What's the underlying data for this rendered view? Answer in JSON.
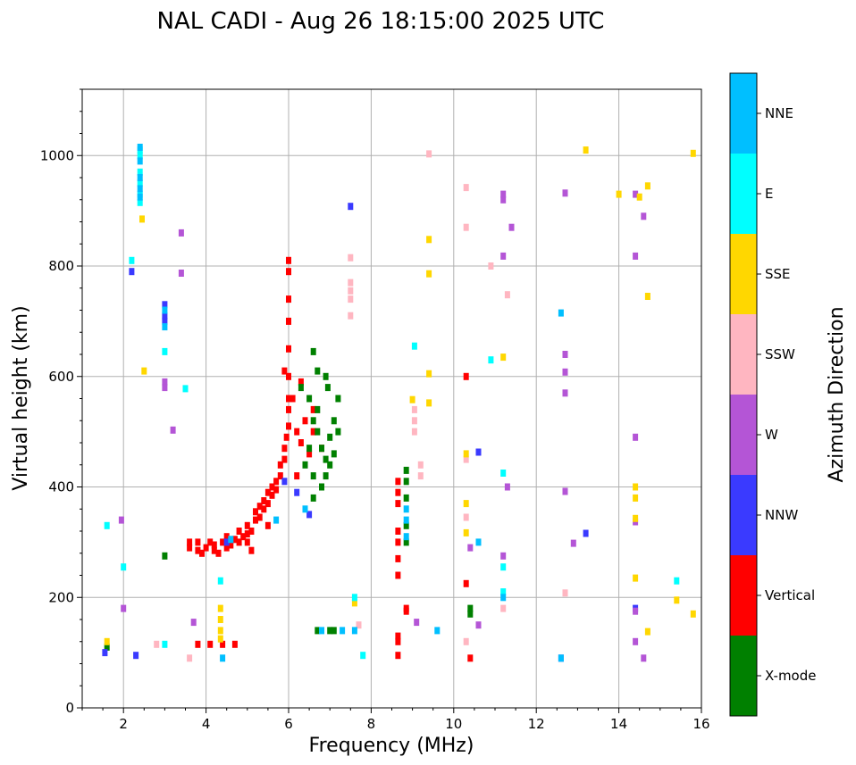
{
  "chart_data": {
    "type": "scatter",
    "title": "NAL CADI - Aug 26 18:15:00 2025 UTC",
    "xlabel": "Frequency (MHz)",
    "ylabel": "Virtual height (km)",
    "xlim": [
      1,
      16
    ],
    "ylim": [
      0,
      1120
    ],
    "x_ticks": [
      2,
      4,
      6,
      8,
      10,
      12,
      14,
      16
    ],
    "y_ticks": [
      0,
      200,
      400,
      600,
      800,
      1000
    ],
    "grid": true,
    "colorbar": {
      "label": "Azimuth Direction",
      "categories": [
        {
          "name": "X-mode",
          "color": "#008000"
        },
        {
          "name": "Vertical",
          "color": "#ff0000"
        },
        {
          "name": "NNW",
          "color": "#3a3aff"
        },
        {
          "name": "W",
          "color": "#b455d6"
        },
        {
          "name": "SSW",
          "color": "#ffb6c1"
        },
        {
          "name": "SSE",
          "color": "#ffd700"
        },
        {
          "name": "E",
          "color": "#00ffff"
        },
        {
          "name": "NNE",
          "color": "#00bfff"
        }
      ]
    },
    "series": [
      {
        "name": "Vertical",
        "points": [
          [
            3.6,
            290
          ],
          [
            3.6,
            300
          ],
          [
            3.8,
            285
          ],
          [
            3.8,
            300
          ],
          [
            3.9,
            280
          ],
          [
            4.0,
            290
          ],
          [
            4.1,
            300
          ],
          [
            4.2,
            285
          ],
          [
            4.2,
            295
          ],
          [
            4.3,
            280
          ],
          [
            4.4,
            300
          ],
          [
            4.5,
            290
          ],
          [
            4.5,
            310
          ],
          [
            4.6,
            295
          ],
          [
            4.7,
            305
          ],
          [
            4.8,
            300
          ],
          [
            4.8,
            320
          ],
          [
            4.9,
            310
          ],
          [
            5.0,
            315
          ],
          [
            5.0,
            330
          ],
          [
            5.1,
            320
          ],
          [
            5.2,
            340
          ],
          [
            5.2,
            355
          ],
          [
            5.3,
            345
          ],
          [
            5.3,
            365
          ],
          [
            5.4,
            360
          ],
          [
            5.4,
            375
          ],
          [
            5.5,
            370
          ],
          [
            5.5,
            390
          ],
          [
            5.6,
            385
          ],
          [
            5.6,
            400
          ],
          [
            5.7,
            395
          ],
          [
            5.7,
            410
          ],
          [
            5.8,
            420
          ],
          [
            5.8,
            440
          ],
          [
            5.9,
            450
          ],
          [
            5.9,
            470
          ],
          [
            5.95,
            490
          ],
          [
            6.0,
            510
          ],
          [
            6.0,
            540
          ],
          [
            6.0,
            560
          ],
          [
            6.0,
            600
          ],
          [
            6.0,
            650
          ],
          [
            6.0,
            700
          ],
          [
            6.0,
            740
          ],
          [
            6.0,
            790
          ],
          [
            6.0,
            810
          ],
          [
            6.2,
            420
          ],
          [
            6.2,
            500
          ],
          [
            6.3,
            480
          ],
          [
            6.4,
            520
          ],
          [
            6.5,
            460
          ],
          [
            6.6,
            500
          ],
          [
            6.6,
            540
          ],
          [
            6.8,
            470
          ],
          [
            5.9,
            610
          ],
          [
            6.1,
            560
          ],
          [
            6.3,
            590
          ],
          [
            4.4,
            115
          ],
          [
            3.8,
            115
          ],
          [
            4.1,
            115
          ],
          [
            4.7,
            115
          ],
          [
            8.65,
            410
          ],
          [
            8.65,
            390
          ],
          [
            8.65,
            370
          ],
          [
            8.65,
            320
          ],
          [
            8.65,
            300
          ],
          [
            8.65,
            270
          ],
          [
            8.65,
            240
          ],
          [
            8.65,
            130
          ],
          [
            8.65,
            120
          ],
          [
            8.65,
            95
          ],
          [
            8.85,
            180
          ],
          [
            8.85,
            175
          ],
          [
            10.3,
            600
          ],
          [
            10.3,
            225
          ],
          [
            10.4,
            90
          ],
          [
            5.0,
            300
          ],
          [
            5.5,
            330
          ],
          [
            5.1,
            285
          ]
        ]
      },
      {
        "name": "X-mode",
        "points": [
          [
            6.5,
            560
          ],
          [
            6.6,
            520
          ],
          [
            6.7,
            500
          ],
          [
            6.8,
            470
          ],
          [
            6.9,
            450
          ],
          [
            7.0,
            440
          ],
          [
            7.0,
            490
          ],
          [
            7.1,
            520
          ],
          [
            7.2,
            560
          ],
          [
            7.2,
            500
          ],
          [
            6.9,
            600
          ],
          [
            6.7,
            610
          ],
          [
            6.3,
            580
          ],
          [
            6.6,
            420
          ],
          [
            6.8,
            400
          ],
          [
            6.4,
            440
          ],
          [
            6.5,
            470
          ],
          [
            7.1,
            460
          ],
          [
            6.7,
            540
          ],
          [
            6.95,
            580
          ],
          [
            8.85,
            430
          ],
          [
            8.85,
            410
          ],
          [
            8.85,
            380
          ],
          [
            8.85,
            330
          ],
          [
            8.85,
            300
          ],
          [
            10.4,
            180
          ],
          [
            10.4,
            170
          ],
          [
            6.7,
            140
          ],
          [
            7.0,
            140
          ],
          [
            7.1,
            140
          ],
          [
            1.6,
            110
          ],
          [
            3.0,
            275
          ],
          [
            6.6,
            645
          ],
          [
            6.6,
            380
          ],
          [
            6.9,
            420
          ]
        ]
      },
      {
        "name": "NNW",
        "points": [
          [
            3.0,
            730
          ],
          [
            3.0,
            710
          ],
          [
            3.0,
            700
          ],
          [
            2.2,
            790
          ],
          [
            7.5,
            908
          ],
          [
            12.6,
            90
          ],
          [
            13.2,
            316
          ],
          [
            10.6,
            463
          ],
          [
            6.2,
            390
          ],
          [
            6.5,
            350
          ],
          [
            4.5,
            300
          ],
          [
            2.3,
            95
          ],
          [
            1.55,
            100
          ],
          [
            14.4,
            180
          ],
          [
            5.9,
            410
          ]
        ]
      },
      {
        "name": "W",
        "points": [
          [
            3.4,
            860
          ],
          [
            3.4,
            787
          ],
          [
            3.0,
            590
          ],
          [
            3.0,
            580
          ],
          [
            3.2,
            503
          ],
          [
            11.2,
            930
          ],
          [
            11.2,
            920
          ],
          [
            11.4,
            870
          ],
          [
            11.2,
            818
          ],
          [
            12.7,
            932
          ],
          [
            12.7,
            640
          ],
          [
            12.7,
            608
          ],
          [
            12.7,
            570
          ],
          [
            12.7,
            392
          ],
          [
            12.9,
            298
          ],
          [
            14.4,
            930
          ],
          [
            14.4,
            818
          ],
          [
            14.4,
            490
          ],
          [
            14.4,
            337
          ],
          [
            14.4,
            175
          ],
          [
            14.6,
            890
          ],
          [
            14.6,
            90
          ],
          [
            14.4,
            120
          ],
          [
            10.6,
            150
          ],
          [
            9.1,
            155
          ],
          [
            11.3,
            400
          ],
          [
            10.4,
            290
          ],
          [
            11.2,
            275
          ],
          [
            3.7,
            155
          ],
          [
            1.95,
            340
          ],
          [
            2.0,
            180
          ]
        ]
      },
      {
        "name": "SSW",
        "points": [
          [
            9.4,
            1003
          ],
          [
            10.3,
            942
          ],
          [
            10.3,
            870
          ],
          [
            10.3,
            450
          ],
          [
            10.3,
            345
          ],
          [
            10.3,
            120
          ],
          [
            10.9,
            800
          ],
          [
            11.3,
            748
          ],
          [
            9.05,
            540
          ],
          [
            9.05,
            520
          ],
          [
            9.05,
            500
          ],
          [
            7.5,
            815
          ],
          [
            7.5,
            770
          ],
          [
            7.5,
            755
          ],
          [
            7.5,
            740
          ],
          [
            7.5,
            710
          ],
          [
            9.2,
            440
          ],
          [
            9.2,
            420
          ],
          [
            11.2,
            180
          ],
          [
            12.7,
            208
          ],
          [
            3.6,
            90
          ],
          [
            2.8,
            115
          ],
          [
            7.7,
            150
          ]
        ]
      },
      {
        "name": "SSE",
        "points": [
          [
            13.2,
            1010
          ],
          [
            14.0,
            930
          ],
          [
            14.5,
            925
          ],
          [
            14.7,
            945
          ],
          [
            14.7,
            745
          ],
          [
            15.8,
            1004
          ],
          [
            9.4,
            848
          ],
          [
            9.4,
            786
          ],
          [
            9.4,
            605
          ],
          [
            9.4,
            552
          ],
          [
            11.2,
            635
          ],
          [
            10.3,
            460
          ],
          [
            10.3,
            370
          ],
          [
            10.3,
            317
          ],
          [
            14.4,
            400
          ],
          [
            14.4,
            380
          ],
          [
            14.4,
            343
          ],
          [
            14.4,
            235
          ],
          [
            14.7,
            138
          ],
          [
            15.4,
            195
          ],
          [
            15.8,
            170
          ],
          [
            2.45,
            885
          ],
          [
            2.5,
            610
          ],
          [
            4.35,
            180
          ],
          [
            4.35,
            160
          ],
          [
            4.35,
            140
          ],
          [
            4.35,
            125
          ],
          [
            1.6,
            120
          ],
          [
            7.6,
            190
          ],
          [
            9.0,
            558
          ]
        ]
      },
      {
        "name": "E",
        "points": [
          [
            2.4,
            1010
          ],
          [
            2.4,
            1000
          ],
          [
            2.4,
            970
          ],
          [
            2.4,
            950
          ],
          [
            2.4,
            930
          ],
          [
            2.4,
            915
          ],
          [
            3.0,
            645
          ],
          [
            3.5,
            578
          ],
          [
            9.05,
            655
          ],
          [
            10.9,
            630
          ],
          [
            11.2,
            425
          ],
          [
            11.2,
            255
          ],
          [
            11.2,
            210
          ],
          [
            15.4,
            230
          ],
          [
            2.2,
            810
          ],
          [
            1.6,
            330
          ],
          [
            4.35,
            230
          ],
          [
            7.6,
            200
          ],
          [
            7.8,
            95
          ],
          [
            2.0,
            255
          ],
          [
            3.0,
            115
          ]
        ]
      },
      {
        "name": "NNE",
        "points": [
          [
            2.4,
            1015
          ],
          [
            2.4,
            990
          ],
          [
            2.4,
            960
          ],
          [
            2.4,
            940
          ],
          [
            2.4,
            925
          ],
          [
            3.0,
            720
          ],
          [
            3.0,
            690
          ],
          [
            12.6,
            715
          ],
          [
            12.6,
            90
          ],
          [
            8.85,
            360
          ],
          [
            8.85,
            340
          ],
          [
            8.85,
            310
          ],
          [
            10.6,
            300
          ],
          [
            11.2,
            200
          ],
          [
            6.8,
            140
          ],
          [
            7.3,
            140
          ],
          [
            7.6,
            140
          ],
          [
            6.4,
            360
          ],
          [
            5.7,
            340
          ],
          [
            4.6,
            305
          ],
          [
            9.6,
            140
          ],
          [
            4.4,
            90
          ]
        ]
      }
    ]
  }
}
